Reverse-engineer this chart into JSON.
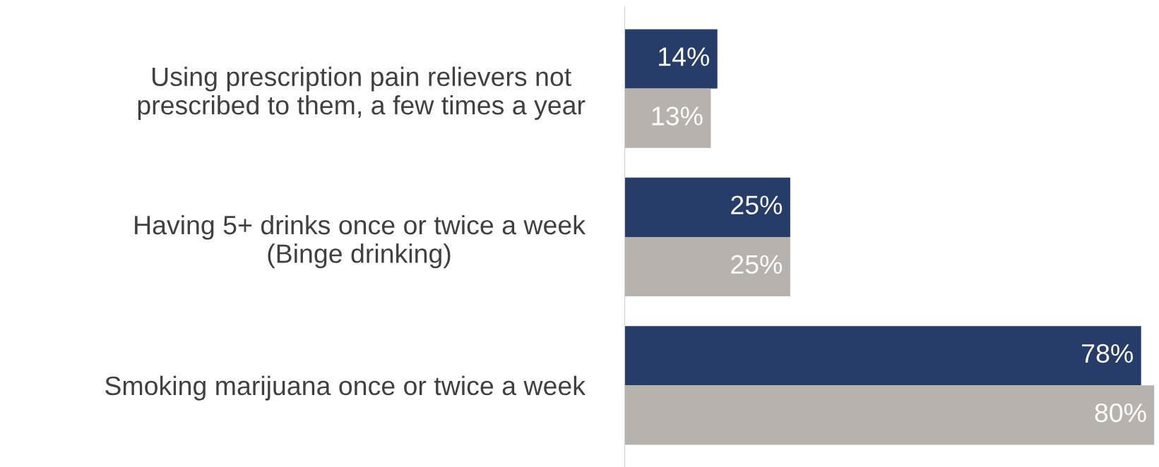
{
  "chart_data": {
    "type": "bar",
    "orientation": "horizontal",
    "categories": [
      "Using prescription pain relievers not\nprescribed to them, a few times a year",
      "Having 5+ drinks once or twice a week\n(Binge drinking)",
      "Smoking marijuana once or twice a week"
    ],
    "series": [
      {
        "color": "#253d68",
        "values": [
          14,
          25,
          78
        ],
        "value_labels": [
          "14%",
          "25%",
          "78%"
        ]
      },
      {
        "color": "#b7b2ad",
        "values": [
          13,
          25,
          80
        ],
        "value_labels": [
          "13%",
          "25%",
          "80%"
        ]
      }
    ],
    "grid": false,
    "legend": false
  }
}
